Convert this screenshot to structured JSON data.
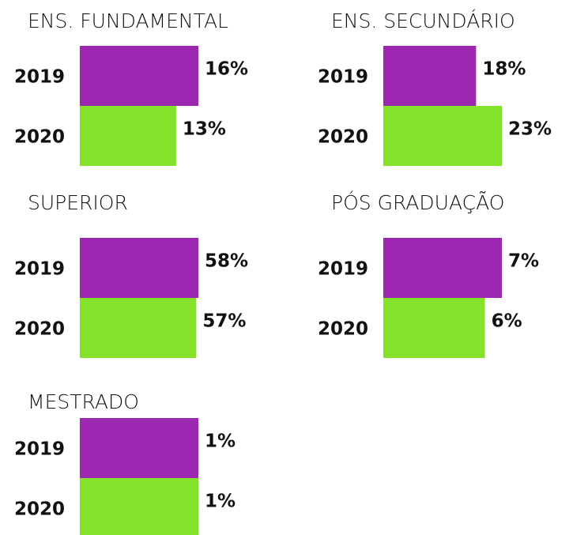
{
  "chart_data": [
    {
      "type": "bar",
      "title": "ENS. FUNDAMENTAL",
      "categories": [
        "2019",
        "2020"
      ],
      "values": [
        16,
        13
      ],
      "value_labels": [
        "16%",
        "13%"
      ],
      "colors": [
        "#9c27b0",
        "#84e22b"
      ]
    },
    {
      "type": "bar",
      "title": "ENS. SECUNDÁRIO",
      "categories": [
        "2019",
        "2020"
      ],
      "values": [
        18,
        23
      ],
      "value_labels": [
        "18%",
        "23%"
      ],
      "colors": [
        "#9c27b0",
        "#84e22b"
      ]
    },
    {
      "type": "bar",
      "title": "SUPERIOR",
      "categories": [
        "2019",
        "2020"
      ],
      "values": [
        58,
        57
      ],
      "value_labels": [
        "58%",
        "57%"
      ],
      "colors": [
        "#9c27b0",
        "#84e22b"
      ]
    },
    {
      "type": "bar",
      "title": "PÓS GRADUAÇÃO",
      "categories": [
        "2019",
        "2020"
      ],
      "values": [
        7,
        6
      ],
      "value_labels": [
        "7%",
        "6%"
      ],
      "colors": [
        "#9c27b0",
        "#84e22b"
      ]
    },
    {
      "type": "bar",
      "title": "MESTRADO",
      "categories": [
        "2019",
        "2020"
      ],
      "values": [
        1,
        1
      ],
      "value_labels": [
        "1%",
        "1%"
      ],
      "colors": [
        "#9c27b0",
        "#84e22b"
      ]
    }
  ]
}
